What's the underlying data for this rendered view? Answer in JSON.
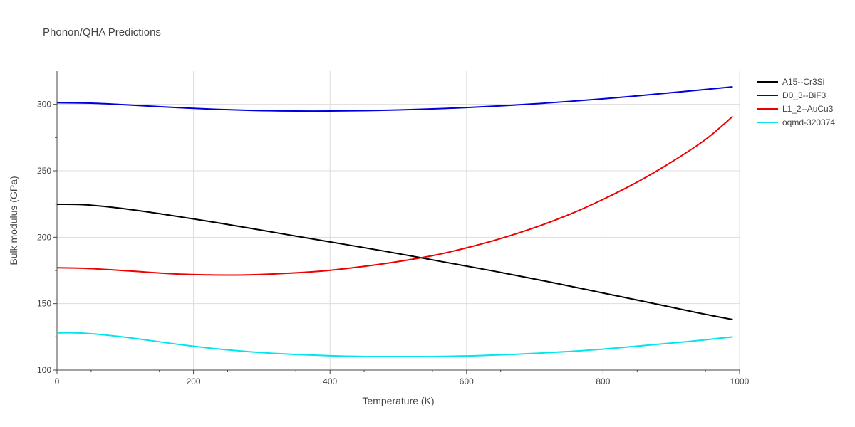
{
  "chart_data": {
    "type": "line",
    "title": "Phonon/QHA Predictions",
    "xlabel": "Temperature (K)",
    "ylabel": "Bulk modulus (GPa)",
    "xlim": [
      0,
      1000
    ],
    "ylim": [
      100,
      325
    ],
    "xticks": [
      0,
      200,
      400,
      600,
      800,
      1000
    ],
    "yticks": [
      100,
      150,
      200,
      250,
      300
    ],
    "grid": true,
    "legend_position": "top-right",
    "series": [
      {
        "name": "A15--Cr3Si",
        "color": "#000000",
        "x": [
          0,
          40,
          90,
          160,
          240,
          320,
          400,
          480,
          560,
          640,
          720,
          800,
          880,
          940,
          990
        ],
        "y": [
          224.8,
          224.5,
          222,
          217,
          210.5,
          203.5,
          196.5,
          189.5,
          182,
          174.5,
          166.5,
          158,
          149.5,
          143,
          138
        ]
      },
      {
        "name": "D0_3--BiF3",
        "color": "#0000dd",
        "x": [
          0,
          50,
          100,
          150,
          200,
          250,
          300,
          350,
          400,
          450,
          500,
          550,
          600,
          650,
          700,
          750,
          800,
          850,
          900,
          950,
          990
        ],
        "y": [
          301.2,
          300.9,
          299.7,
          298.3,
          297,
          296,
          295.3,
          295,
          295,
          295.3,
          295.8,
          296.6,
          297.6,
          298.9,
          300.4,
          302.2,
          304.2,
          306.4,
          308.8,
          311.2,
          313.2
        ]
      },
      {
        "name": "L1_2--AuCu3",
        "color": "#ee0000",
        "x": [
          0,
          40,
          100,
          180,
          250,
          310,
          380,
          430,
          490,
          550,
          600,
          650,
          700,
          750,
          800,
          850,
          900,
          950,
          990
        ],
        "y": [
          177,
          176.6,
          174.8,
          172.2,
          171.5,
          172.2,
          174.2,
          176.8,
          180.9,
          186.1,
          192,
          199,
          207.3,
          217,
          228.5,
          241.5,
          256.5,
          273.5,
          291
        ]
      },
      {
        "name": "oqmd-320374",
        "color": "#00e5ee",
        "x": [
          0,
          40,
          100,
          180,
          250,
          320,
          400,
          460,
          520,
          560,
          620,
          700,
          780,
          850,
          920,
          990
        ],
        "y": [
          128,
          127.7,
          124.7,
          119.2,
          115.2,
          112.5,
          110.8,
          110.2,
          110.2,
          110.3,
          110.9,
          112.6,
          115,
          118,
          121.2,
          125
        ]
      }
    ]
  }
}
